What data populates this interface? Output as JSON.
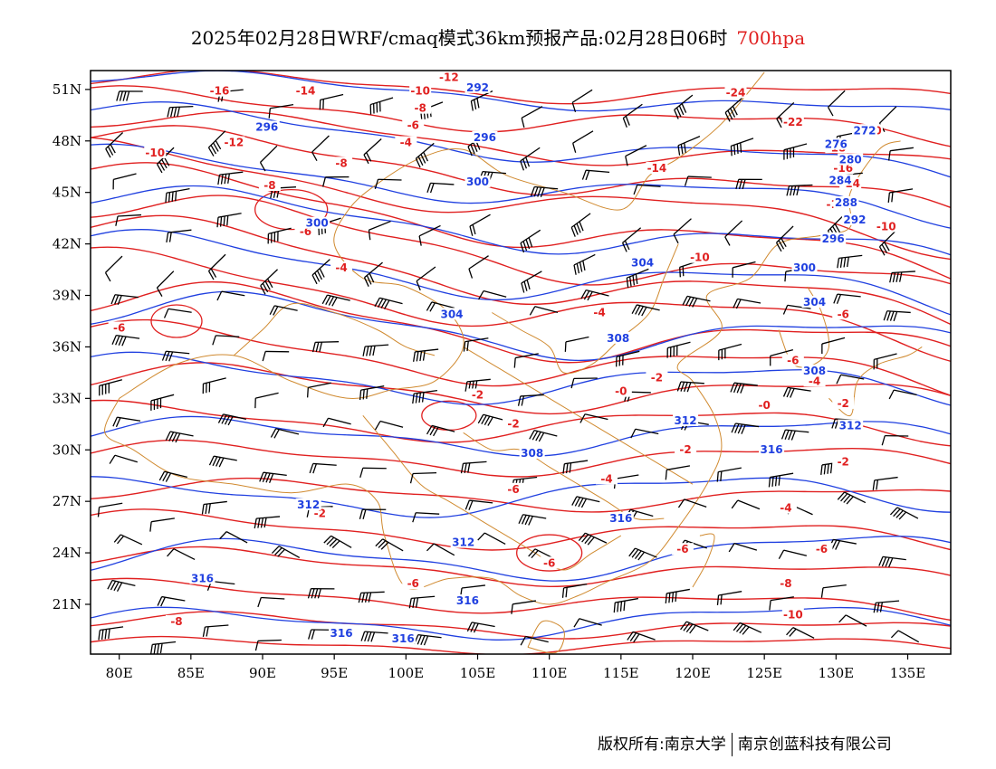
{
  "title": {
    "main": "2025年02月28日WRF/cmaq模式36km预报产品:02月28日06时",
    "level": "700hpa"
  },
  "axes": {
    "lat_labels": [
      "51N",
      "48N",
      "45N",
      "42N",
      "39N",
      "36N",
      "33N",
      "30N",
      "27N",
      "24N",
      "21N"
    ],
    "lon_labels": [
      "80E",
      "85E",
      "90E",
      "95E",
      "100E",
      "105E",
      "110E",
      "115E",
      "120E",
      "125E",
      "130E",
      "135E"
    ]
  },
  "colors": {
    "temperature": "#e02020",
    "height": "#2040e0",
    "border": "#d08a30",
    "wind": "#000000"
  },
  "temperature_labels": [
    {
      "text": "-16",
      "lon": 87,
      "lat": 50.8
    },
    {
      "text": "-14",
      "lon": 93,
      "lat": 50.8
    },
    {
      "text": "-12",
      "lon": 103,
      "lat": 51.6
    },
    {
      "text": "-10",
      "lon": 101,
      "lat": 50.8
    },
    {
      "text": "-8",
      "lon": 101,
      "lat": 49.8
    },
    {
      "text": "-6",
      "lon": 100.5,
      "lat": 48.8
    },
    {
      "text": "-4",
      "lon": 100,
      "lat": 47.8
    },
    {
      "text": "-12",
      "lon": 88,
      "lat": 47.8
    },
    {
      "text": "-10",
      "lon": 82.5,
      "lat": 47.2
    },
    {
      "text": "-8",
      "lon": 95.5,
      "lat": 46.6
    },
    {
      "text": "-8",
      "lon": 90.5,
      "lat": 45.3
    },
    {
      "text": "-6",
      "lon": 93,
      "lat": 42.6
    },
    {
      "text": "-4",
      "lon": 95.5,
      "lat": 40.5
    },
    {
      "text": "-6",
      "lon": 80,
      "lat": 37
    },
    {
      "text": "-24",
      "lon": 123,
      "lat": 50.7
    },
    {
      "text": "-22",
      "lon": 127,
      "lat": 49
    },
    {
      "text": "-20",
      "lon": 132.5,
      "lat": 48.5
    },
    {
      "text": "-18",
      "lon": 130,
      "lat": 47.5
    },
    {
      "text": "-16",
      "lon": 130.5,
      "lat": 46.3
    },
    {
      "text": "-14",
      "lon": 131,
      "lat": 45.4
    },
    {
      "text": "-14",
      "lon": 117.5,
      "lat": 46.3
    },
    {
      "text": "-12",
      "lon": 130,
      "lat": 44.2
    },
    {
      "text": "-10",
      "lon": 133.5,
      "lat": 42.9
    },
    {
      "text": "-10",
      "lon": 120.5,
      "lat": 41.1
    },
    {
      "text": "-6",
      "lon": 130.5,
      "lat": 37.8
    },
    {
      "text": "-6",
      "lon": 127,
      "lat": 35.1
    },
    {
      "text": "-4",
      "lon": 128.5,
      "lat": 33.9
    },
    {
      "text": "-4",
      "lon": 113.5,
      "lat": 37.9
    },
    {
      "text": "-2",
      "lon": 130.5,
      "lat": 32.6
    },
    {
      "text": "-2",
      "lon": 117.5,
      "lat": 34.1
    },
    {
      "text": "-2",
      "lon": 105,
      "lat": 33.1
    },
    {
      "text": "-0",
      "lon": 115,
      "lat": 33.3
    },
    {
      "text": "-0",
      "lon": 125,
      "lat": 32.5
    },
    {
      "text": "-2",
      "lon": 107.5,
      "lat": 31.4
    },
    {
      "text": "-2",
      "lon": 119.5,
      "lat": 29.9
    },
    {
      "text": "-2",
      "lon": 130.5,
      "lat": 29.2
    },
    {
      "text": "-4",
      "lon": 114,
      "lat": 28.2
    },
    {
      "text": "-6",
      "lon": 107.5,
      "lat": 27.6
    },
    {
      "text": "-4",
      "lon": 126.5,
      "lat": 26.5
    },
    {
      "text": "-6",
      "lon": 119.3,
      "lat": 24.1
    },
    {
      "text": "-6",
      "lon": 129,
      "lat": 24.1
    },
    {
      "text": "-6",
      "lon": 110,
      "lat": 23.3
    },
    {
      "text": "-6",
      "lon": 100.5,
      "lat": 22.1
    },
    {
      "text": "-8",
      "lon": 126.5,
      "lat": 22.1
    },
    {
      "text": "-10",
      "lon": 127,
      "lat": 20.3
    },
    {
      "text": "-8",
      "lon": 84,
      "lat": 19.9
    },
    {
      "text": "-2",
      "lon": 94,
      "lat": 26.2
    }
  ],
  "height_labels": [
    {
      "text": "292",
      "lon": 105,
      "lat": 51.0
    },
    {
      "text": "296",
      "lon": 90.3,
      "lat": 48.7
    },
    {
      "text": "296",
      "lon": 105.5,
      "lat": 48.1
    },
    {
      "text": "300",
      "lon": 105,
      "lat": 45.5
    },
    {
      "text": "300",
      "lon": 93.8,
      "lat": 43.1
    },
    {
      "text": "272",
      "lon": 132,
      "lat": 48.5
    },
    {
      "text": "276",
      "lon": 130,
      "lat": 47.7
    },
    {
      "text": "280",
      "lon": 131,
      "lat": 46.8
    },
    {
      "text": "284",
      "lon": 130.3,
      "lat": 45.6
    },
    {
      "text": "288",
      "lon": 130.7,
      "lat": 44.3
    },
    {
      "text": "292",
      "lon": 131.3,
      "lat": 43.3
    },
    {
      "text": "296",
      "lon": 129.8,
      "lat": 42.2
    },
    {
      "text": "300",
      "lon": 127.8,
      "lat": 40.5
    },
    {
      "text": "304",
      "lon": 116.5,
      "lat": 40.8
    },
    {
      "text": "304",
      "lon": 103.2,
      "lat": 37.8
    },
    {
      "text": "304",
      "lon": 128.5,
      "lat": 38.5
    },
    {
      "text": "308",
      "lon": 114.8,
      "lat": 36.4
    },
    {
      "text": "308",
      "lon": 128.5,
      "lat": 34.5
    },
    {
      "text": "312",
      "lon": 119.5,
      "lat": 31.6
    },
    {
      "text": "312",
      "lon": 131,
      "lat": 31.3
    },
    {
      "text": "308",
      "lon": 108.8,
      "lat": 29.7
    },
    {
      "text": "316",
      "lon": 125.5,
      "lat": 29.9
    },
    {
      "text": "312",
      "lon": 93.2,
      "lat": 26.7
    },
    {
      "text": "316",
      "lon": 115,
      "lat": 25.9
    },
    {
      "text": "312",
      "lon": 104,
      "lat": 24.5
    },
    {
      "text": "316",
      "lon": 85.8,
      "lat": 22.4
    },
    {
      "text": "316",
      "lon": 104.3,
      "lat": 21.1
    },
    {
      "text": "316",
      "lon": 95.5,
      "lat": 19.2
    },
    {
      "text": "316",
      "lon": 99.8,
      "lat": 18.9
    }
  ],
  "footer": {
    "left": "版权所有:南京大学",
    "right": "南京创蓝科技有限公司"
  }
}
